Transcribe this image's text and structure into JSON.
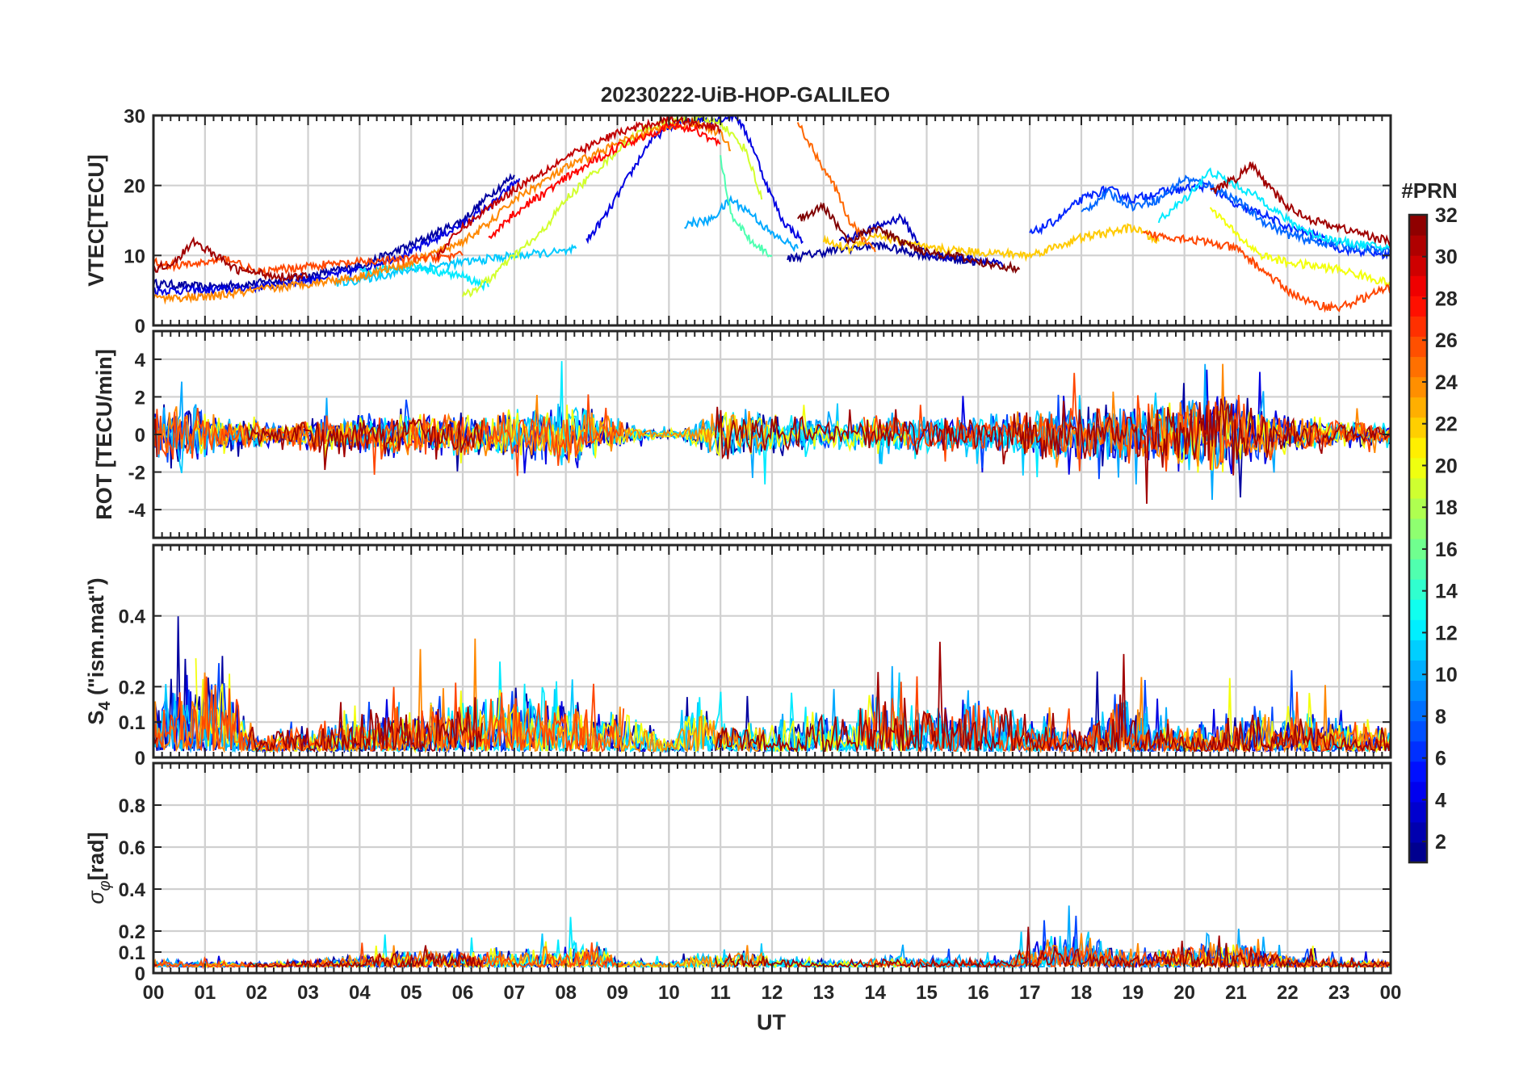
{
  "chart_data": {
    "type": "line",
    "title": "20230222-UiB-HOP-GALILEO",
    "xlabel": "UT",
    "x_range": [
      0,
      24
    ],
    "x_ticks": [
      "00",
      "01",
      "02",
      "03",
      "04",
      "05",
      "06",
      "07",
      "08",
      "09",
      "10",
      "11",
      "12",
      "13",
      "14",
      "15",
      "16",
      "17",
      "18",
      "19",
      "20",
      "21",
      "22",
      "23",
      "00"
    ],
    "grid": true,
    "colorbar": {
      "label": "#PRN",
      "range": [
        1,
        32
      ],
      "ticks": [
        "2",
        "4",
        "6",
        "8",
        "10",
        "12",
        "14",
        "16",
        "18",
        "20",
        "22",
        "24",
        "26",
        "28",
        "30",
        "32"
      ],
      "tick_values": [
        2,
        4,
        6,
        8,
        10,
        12,
        14,
        16,
        18,
        20,
        22,
        24,
        26,
        28,
        30,
        32
      ],
      "colormap": "jet",
      "colors": [
        "#00008f",
        "#0000ff",
        "#0080ff",
        "#00ffff",
        "#80ff80",
        "#ffff00",
        "#ff8000",
        "#ff0000",
        "#800000"
      ]
    },
    "panels": [
      {
        "id": "vtec",
        "ylabel": "VTEC[TECU]",
        "ylim": [
          0,
          30
        ],
        "yticks": [
          0,
          10,
          20,
          30
        ],
        "ytick_labels": [
          "0",
          "10",
          "20",
          "30"
        ],
        "series": [
          {
            "prn": 2,
            "x": [
              0,
              1,
              2,
              3,
              4,
              5,
              6,
              6.5,
              7
            ],
            "y": [
              6,
              5.5,
              6,
              7,
              8.5,
              11.5,
              15,
              18.5,
              21.5
            ]
          },
          {
            "prn": 4,
            "x": [
              0,
              1,
              2,
              3,
              4,
              5,
              6,
              6.6,
              7.1
            ],
            "y": [
              5,
              5,
              5.5,
              6.5,
              8,
              10.5,
              14.5,
              17.5,
              21
            ]
          },
          {
            "prn": 4,
            "x": [
              8.4,
              8.8,
              9.2,
              9.6,
              10,
              10.5,
              11,
              11.3,
              11.6,
              11.9,
              12.2,
              12.6
            ],
            "y": [
              12,
              16,
              21,
              26,
              28.5,
              29.5,
              29.5,
              30,
              26,
              20,
              15,
              12
            ]
          },
          {
            "prn": 2,
            "x": [
              12.3,
              13,
              14,
              15,
              16
            ],
            "y": [
              9.5,
              10.5,
              11.5,
              10,
              9
            ]
          },
          {
            "prn": 3,
            "x": [
              13.3,
              14,
              14.5,
              15,
              16,
              16.5
            ],
            "y": [
              12,
              14,
              15.5,
              10,
              9.5,
              8.5
            ]
          },
          {
            "prn": 6,
            "x": [
              17,
              17.5,
              18,
              18.5,
              19,
              19.5,
              20,
              20.5,
              21,
              21.5,
              22,
              22.5,
              23,
              23.5,
              24
            ],
            "y": [
              13,
              15,
              18,
              19.5,
              18,
              19,
              19.5,
              20,
              17,
              16,
              14,
              13,
              11,
              10.5,
              10
            ]
          },
          {
            "prn": 8,
            "x": [
              18,
              18.5,
              19,
              19.5,
              20,
              20.5,
              21,
              21.5,
              22,
              22.5,
              23,
              23.5,
              24
            ],
            "y": [
              16,
              19,
              17,
              18,
              21,
              20,
              18,
              15,
              13,
              12,
              11.5,
              11,
              10.5
            ]
          },
          {
            "prn": 10,
            "x": [
              10.3,
              10.8,
              11.2,
              11.6,
              12,
              12.5
            ],
            "y": [
              14.5,
              15,
              18,
              16,
              13,
              11
            ]
          },
          {
            "prn": 11,
            "x": [
              3.5,
              4,
              5,
              6,
              7,
              8,
              8.2
            ],
            "y": [
              6,
              6.5,
              8,
              9,
              10,
              10.5,
              11
            ]
          },
          {
            "prn": 12,
            "x": [
              4,
              5,
              6,
              6.5
            ],
            "y": [
              7.5,
              8.5,
              7,
              5.5
            ]
          },
          {
            "prn": 12,
            "x": [
              19.5,
              20,
              20.5,
              21,
              21.5,
              22,
              22.5,
              23,
              23.5,
              24
            ],
            "y": [
              15,
              18,
              22,
              20,
              18,
              15,
              13,
              12,
              11.5,
              11
            ]
          },
          {
            "prn": 15,
            "x": [
              11,
              11.2,
              11.6,
              12
            ],
            "y": [
              24,
              16,
              12,
              10
            ]
          },
          {
            "prn": 19,
            "x": [
              6,
              6.5,
              7,
              7.5,
              8,
              8.5,
              9,
              9.5,
              10,
              10.5,
              11,
              11.5,
              11.8
            ],
            "y": [
              4,
              6.5,
              10,
              13,
              18,
              21.5,
              25,
              28,
              29,
              29.5,
              29,
              25,
              18
            ]
          },
          {
            "prn": 20,
            "x": [
              20.5,
              21,
              21.5,
              22,
              22.5,
              23,
              23.5,
              24
            ],
            "y": [
              17,
              13,
              10,
              9,
              8.5,
              8,
              7,
              6
            ]
          },
          {
            "prn": 22,
            "x": [
              13,
              13.5,
              14,
              15,
              16,
              17,
              18,
              19,
              19.5
            ],
            "y": [
              12,
              11,
              13,
              11,
              10.5,
              10,
              12.5,
              14,
              12
            ]
          },
          {
            "prn": 24,
            "x": [
              0,
              1,
              2,
              3,
              4,
              5,
              6,
              6.5,
              7,
              8,
              9,
              10,
              10.5,
              11,
              11.2
            ],
            "y": [
              4,
              4,
              5,
              6,
              7,
              9,
              12,
              14.5,
              18,
              22.5,
              26,
              28.5,
              29,
              27.5,
              25
            ]
          },
          {
            "prn": 25,
            "x": [
              12.5,
              12.8,
              13.2,
              13.5,
              13.8,
              14
            ],
            "y": [
              29,
              25,
              20,
              15,
              12,
              10.5
            ]
          },
          {
            "prn": 26,
            "x": [
              19.2,
              20,
              21,
              21.5,
              22,
              22.5,
              23,
              23.5,
              24
            ],
            "y": [
              13,
              12.5,
              11,
              8,
              5,
              3,
              2.5,
              4,
              5.5
            ]
          },
          {
            "prn": 26,
            "x": [
              0,
              0.5,
              1,
              1.5,
              2,
              3,
              4,
              5,
              6
            ],
            "y": [
              9,
              8.5,
              9,
              9.5,
              7.5,
              8.5,
              9,
              9.5,
              10
            ]
          },
          {
            "prn": 28,
            "x": [
              6.5,
              7,
              8,
              9,
              10,
              10.5,
              11
            ],
            "y": [
              12.5,
              16,
              21,
              25.5,
              28.5,
              28,
              26
            ]
          },
          {
            "prn": 30,
            "x": [
              5.5,
              6,
              7,
              8,
              9,
              10,
              10.5,
              11
            ],
            "y": [
              10,
              14,
              19.5,
              24,
              27.5,
              29.5,
              29,
              28
            ]
          },
          {
            "prn": 31,
            "x": [
              0,
              0.4,
              0.8,
              1.2,
              1.6,
              2,
              2.5,
              3
            ],
            "y": [
              8,
              9,
              12,
              10,
              8,
              7.5,
              7,
              7
            ]
          },
          {
            "prn": 31,
            "x": [
              20.5,
              21,
              21.3,
              21.6,
              22,
              22.5,
              23,
              23.5,
              24
            ],
            "y": [
              19,
              21,
              23,
              20,
              17,
              15,
              14,
              13,
              12
            ]
          },
          {
            "prn": 32,
            "x": [
              12.5,
              13,
              13.5,
              14,
              14.5,
              15,
              15.5,
              16,
              16.5,
              16.8
            ],
            "y": [
              15,
              17,
              12,
              14,
              12,
              10.5,
              10,
              9,
              8.5,
              8
            ]
          }
        ]
      },
      {
        "id": "rot",
        "ylabel": "ROT [TECU/min]",
        "ylim": [
          -5.5,
          5.5
        ],
        "yticks": [
          -4,
          -2,
          0,
          2,
          4
        ],
        "ytick_labels": [
          "-4",
          "-2",
          "0",
          "2",
          "4"
        ],
        "activity": [
          {
            "x": 0,
            "v": 1.6
          },
          {
            "x": 0.8,
            "v": 1.8
          },
          {
            "x": 1.5,
            "v": 0.9
          },
          {
            "x": 2.5,
            "v": 0.6
          },
          {
            "x": 3,
            "v": 1.0
          },
          {
            "x": 4,
            "v": 1.1
          },
          {
            "x": 5,
            "v": 1.3
          },
          {
            "x": 6,
            "v": 1.2
          },
          {
            "x": 7,
            "v": 1.5
          },
          {
            "x": 8,
            "v": 1.9
          },
          {
            "x": 8.8,
            "v": 1.2
          },
          {
            "x": 9.5,
            "v": 0.3
          },
          {
            "x": 10.2,
            "v": 0.2
          },
          {
            "x": 11,
            "v": 1.6
          },
          {
            "x": 12,
            "v": 1.2
          },
          {
            "x": 13,
            "v": 0.8
          },
          {
            "x": 14,
            "v": 1.1
          },
          {
            "x": 15,
            "v": 1.0
          },
          {
            "x": 16,
            "v": 1.0
          },
          {
            "x": 17,
            "v": 1.4
          },
          {
            "x": 18,
            "v": 1.6
          },
          {
            "x": 19,
            "v": 1.6
          },
          {
            "x": 20,
            "v": 2.4
          },
          {
            "x": 21,
            "v": 2.2
          },
          {
            "x": 22,
            "v": 1.2
          },
          {
            "x": 23,
            "v": 0.8
          },
          {
            "x": 24,
            "v": 0.7
          }
        ]
      },
      {
        "id": "s4",
        "ylabel": "S4 (\"ism.mat\")",
        "ylabel_main": "S",
        "ylabel_sub": "4",
        "ylabel_rest": " (\"ism.mat\")",
        "ylim": [
          0,
          0.6
        ],
        "yticks": [
          0,
          0.1,
          0.2,
          0.4
        ],
        "ytick_labels": [
          "0",
          "0.1",
          "0.2",
          "0.4"
        ],
        "activity": [
          {
            "x": 0,
            "v": 0.18
          },
          {
            "x": 0.7,
            "v": 0.25
          },
          {
            "x": 1.3,
            "v": 0.3
          },
          {
            "x": 2,
            "v": 0.05
          },
          {
            "x": 3,
            "v": 0.08
          },
          {
            "x": 4,
            "v": 0.12
          },
          {
            "x": 5,
            "v": 0.15
          },
          {
            "x": 6,
            "v": 0.18
          },
          {
            "x": 7,
            "v": 0.2
          },
          {
            "x": 7.6,
            "v": 0.22
          },
          {
            "x": 8.5,
            "v": 0.12
          },
          {
            "x": 9,
            "v": 0.15
          },
          {
            "x": 10,
            "v": 0.05
          },
          {
            "x": 10.5,
            "v": 0.2
          },
          {
            "x": 11,
            "v": 0.1
          },
          {
            "x": 12,
            "v": 0.08
          },
          {
            "x": 12.5,
            "v": 0.12
          },
          {
            "x": 13.5,
            "v": 0.12
          },
          {
            "x": 14,
            "v": 0.18
          },
          {
            "x": 15,
            "v": 0.15
          },
          {
            "x": 16,
            "v": 0.18
          },
          {
            "x": 17,
            "v": 0.1
          },
          {
            "x": 18,
            "v": 0.06
          },
          {
            "x": 18.7,
            "v": 0.2
          },
          {
            "x": 19.5,
            "v": 0.08
          },
          {
            "x": 20.5,
            "v": 0.08
          },
          {
            "x": 21.5,
            "v": 0.15
          },
          {
            "x": 22.5,
            "v": 0.12
          },
          {
            "x": 23.5,
            "v": 0.1
          },
          {
            "x": 24,
            "v": 0.08
          }
        ]
      },
      {
        "id": "sigma",
        "ylabel": "σφ[rad]",
        "ylabel_main": "σ",
        "ylabel_sub": "φ",
        "ylabel_rest": "[rad]",
        "ylim": [
          0,
          1
        ],
        "yticks": [
          0,
          0.1,
          0.2,
          0.4,
          0.6,
          0.8
        ],
        "ytick_labels": [
          "0",
          "0.1",
          "0.2",
          "0.4",
          "0.6",
          "0.8"
        ],
        "activity": [
          {
            "x": 0,
            "v": 0.04
          },
          {
            "x": 1,
            "v": 0.03
          },
          {
            "x": 2,
            "v": 0.02
          },
          {
            "x": 3,
            "v": 0.04
          },
          {
            "x": 4,
            "v": 0.07
          },
          {
            "x": 5,
            "v": 0.08
          },
          {
            "x": 6,
            "v": 0.09
          },
          {
            "x": 7,
            "v": 0.08
          },
          {
            "x": 8,
            "v": 0.12
          },
          {
            "x": 8.5,
            "v": 0.16
          },
          {
            "x": 9,
            "v": 0.04
          },
          {
            "x": 10,
            "v": 0.02
          },
          {
            "x": 10.5,
            "v": 0.07
          },
          {
            "x": 11.5,
            "v": 0.08
          },
          {
            "x": 12.5,
            "v": 0.04
          },
          {
            "x": 13.5,
            "v": 0.03
          },
          {
            "x": 14.5,
            "v": 0.06
          },
          {
            "x": 15.5,
            "v": 0.05
          },
          {
            "x": 16.5,
            "v": 0.04
          },
          {
            "x": 17.5,
            "v": 0.18
          },
          {
            "x": 18,
            "v": 0.16
          },
          {
            "x": 19,
            "v": 0.08
          },
          {
            "x": 20,
            "v": 0.1
          },
          {
            "x": 21,
            "v": 0.14
          },
          {
            "x": 22,
            "v": 0.06
          },
          {
            "x": 23,
            "v": 0.04
          },
          {
            "x": 24,
            "v": 0.04
          }
        ]
      }
    ]
  }
}
